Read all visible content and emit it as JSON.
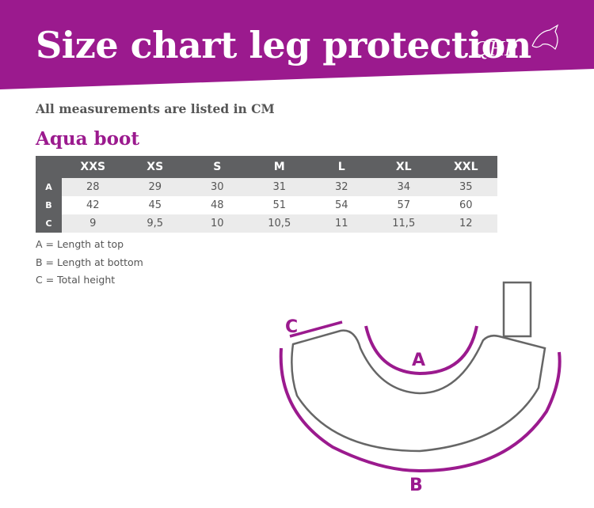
{
  "header": {
    "title": "Size chart leg protection",
    "logo": "QHP"
  },
  "subtitle": "All measurements are listed in CM",
  "product": "Aqua boot",
  "table": {
    "columns": [
      "XXS",
      "XS",
      "S",
      "M",
      "L",
      "XL",
      "XXL"
    ],
    "rows": [
      {
        "label": "A",
        "values": [
          "28",
          "29",
          "30",
          "31",
          "32",
          "34",
          "35"
        ]
      },
      {
        "label": "B",
        "values": [
          "42",
          "45",
          "48",
          "51",
          "54",
          "57",
          "60"
        ]
      },
      {
        "label": "C",
        "values": [
          "9",
          "9,5",
          "10",
          "10,5",
          "11",
          "11,5",
          "12"
        ]
      }
    ]
  },
  "legend": [
    "A = Length at top",
    "B = Length at bottom",
    "C = Total height"
  ],
  "diagram": {
    "labels": [
      "A",
      "B",
      "C"
    ]
  }
}
